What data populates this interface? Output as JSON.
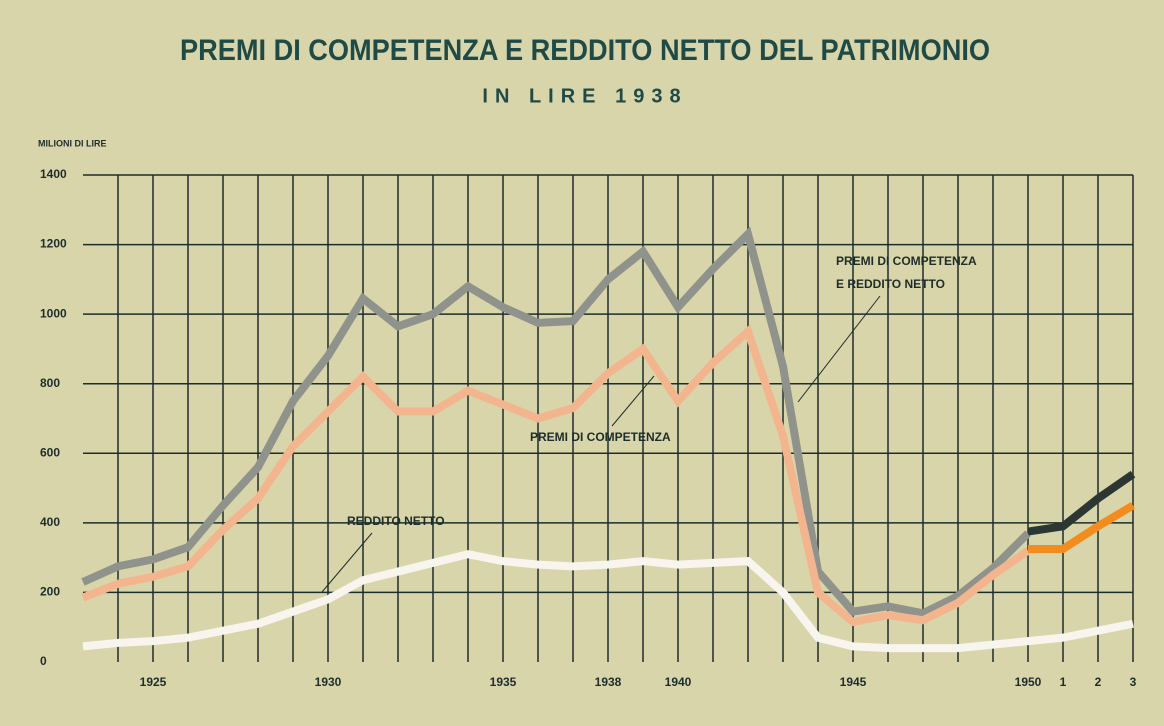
{
  "chart_data": {
    "type": "line",
    "title": "PREMI DI COMPETENZA E REDDITO NETTO DEL PATRIMONIO",
    "subtitle": "IN LIRE 1938",
    "y_label": "MILIONI DI LIRE",
    "x": [
      1923,
      1924,
      1925,
      1926,
      1927,
      1928,
      1929,
      1930,
      1931,
      1932,
      1933,
      1934,
      1935,
      1936,
      1937,
      1938,
      1939,
      1940,
      1941,
      1942,
      1943,
      1944,
      1945,
      1946,
      1947,
      1948,
      1949,
      1950,
      1951,
      1952,
      1953
    ],
    "xlim": [
      1923,
      1953
    ],
    "xticks": [
      1925,
      1930,
      1935,
      1938,
      1940,
      1945,
      1950,
      {
        "value": 1951,
        "label": "1"
      },
      {
        "value": 1952,
        "label": "2"
      },
      {
        "value": 1953,
        "label": "3"
      }
    ],
    "ylim": [
      0,
      1400
    ],
    "yticks": [
      0,
      200,
      400,
      600,
      800,
      1000,
      1200,
      1400
    ],
    "grid": true,
    "series": [
      {
        "color": "#8f938b",
        "values": [
          230,
          275,
          295,
          330,
          450,
          560,
          750,
          880,
          1045,
          965,
          1000,
          1080,
          1020,
          975,
          980,
          1100,
          1180,
          1020,
          1130,
          1230,
          850,
          260,
          145,
          160,
          140,
          190,
          270,
          370,
          null,
          null,
          null
        ]
      },
      {
        "color": "#f2b58e",
        "values": [
          185,
          225,
          245,
          275,
          380,
          470,
          620,
          720,
          820,
          720,
          720,
          780,
          740,
          700,
          730,
          830,
          900,
          750,
          860,
          950,
          650,
          200,
          115,
          135,
          120,
          170,
          250,
          320,
          null,
          null,
          null
        ]
      },
      {
        "color": "#f7f5ee",
        "values": [
          45,
          55,
          60,
          70,
          90,
          110,
          145,
          180,
          235,
          260,
          285,
          310,
          290,
          280,
          275,
          280,
          290,
          280,
          285,
          290,
          200,
          70,
          45,
          40,
          40,
          40,
          50,
          60,
          70,
          90,
          110
        ]
      },
      {
        "color": "#2c3733",
        "values": [
          null,
          null,
          null,
          null,
          null,
          null,
          null,
          null,
          null,
          null,
          null,
          null,
          null,
          null,
          null,
          null,
          null,
          null,
          null,
          null,
          null,
          null,
          null,
          null,
          null,
          null,
          null,
          375,
          390,
          470,
          540
        ]
      },
      {
        "color": "#f28c1e",
        "values": [
          null,
          null,
          null,
          null,
          null,
          null,
          null,
          null,
          null,
          null,
          null,
          null,
          null,
          null,
          null,
          null,
          null,
          null,
          null,
          null,
          null,
          null,
          null,
          null,
          null,
          null,
          null,
          325,
          325,
          390,
          450
        ]
      }
    ],
    "annotations": [
      "PREMI DI COMPETENZA",
      "E REDDITO NETTO",
      "PREMI DI COMPETENZA",
      "REDDITO NETTO"
    ]
  }
}
